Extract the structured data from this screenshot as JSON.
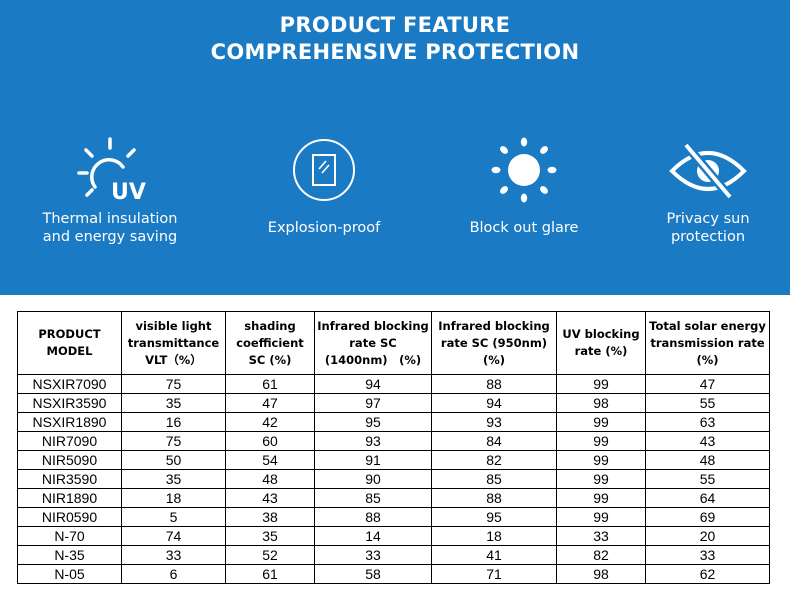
{
  "header": {
    "title_line1": "PRODUCT FEATURE",
    "title_line2": "COMPREHENSIVE PROTECTION"
  },
  "features": [
    {
      "icon": "sun-uv-icon",
      "line1": "Thermal insulation",
      "line2": "and energy saving"
    },
    {
      "icon": "glass-shield-icon",
      "line1": "Explosion-proof",
      "line2": ""
    },
    {
      "icon": "sun-glare-icon",
      "line1": "Block out glare",
      "line2": ""
    },
    {
      "icon": "eye-slash-icon",
      "line1": "Privacy sun",
      "line2": "protection"
    }
  ],
  "uv_text": "UV",
  "colors": {
    "banner": "#1a7ac4",
    "text_light": "#ffffff",
    "table_border": "#000000"
  },
  "table": {
    "headers": [
      [
        "PRODUCT",
        "MODEL"
      ],
      [
        "visible light",
        "transmittance",
        "VLT（%）"
      ],
      [
        "shading",
        "coefficient",
        "SC (%)"
      ],
      [
        "Infrared blocking",
        "rate SC",
        "(1400nm)　(%)"
      ],
      [
        "Infrared blocking",
        "rate SC (950nm)",
        "(%)"
      ],
      [
        "UV blocking",
        "rate (%)"
      ],
      [
        "Total solar energy",
        "transmission rate",
        "(%)"
      ]
    ],
    "rows": [
      [
        "NSXIR7090",
        "75",
        "61",
        "94",
        "88",
        "99",
        "47"
      ],
      [
        "NSXIR3590",
        "35",
        "47",
        "97",
        "94",
        "98",
        "55"
      ],
      [
        "NSXIR1890",
        "16",
        "42",
        "95",
        "93",
        "99",
        "63"
      ],
      [
        "NIR7090",
        "75",
        "60",
        "93",
        "84",
        "99",
        "43"
      ],
      [
        "NIR5090",
        "50",
        "54",
        "91",
        "82",
        "99",
        "48"
      ],
      [
        "NIR3590",
        "35",
        "48",
        "90",
        "85",
        "99",
        "55"
      ],
      [
        "NIR1890",
        "18",
        "43",
        "85",
        "88",
        "99",
        "64"
      ],
      [
        "NIR0590",
        "5",
        "38",
        "88",
        "95",
        "99",
        "69"
      ],
      [
        "N-70",
        "74",
        "35",
        "14",
        "18",
        "33",
        "20"
      ],
      [
        "N-35",
        "33",
        "52",
        "33",
        "41",
        "82",
        "33"
      ],
      [
        "N-05",
        "6",
        "61",
        "58",
        "71",
        "98",
        "62"
      ]
    ]
  }
}
